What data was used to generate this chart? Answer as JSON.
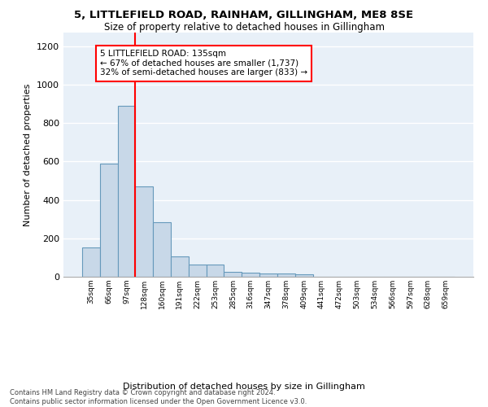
{
  "title1": "5, LITTLEFIELD ROAD, RAINHAM, GILLINGHAM, ME8 8SE",
  "title2": "Size of property relative to detached houses in Gillingham",
  "xlabel": "Distribution of detached houses by size in Gillingham",
  "ylabel": "Number of detached properties",
  "bar_labels": [
    "35sqm",
    "66sqm",
    "97sqm",
    "128sqm",
    "160sqm",
    "191sqm",
    "222sqm",
    "253sqm",
    "285sqm",
    "316sqm",
    "347sqm",
    "378sqm",
    "409sqm",
    "441sqm",
    "472sqm",
    "503sqm",
    "534sqm",
    "566sqm",
    "597sqm",
    "628sqm",
    "659sqm"
  ],
  "bar_values": [
    152,
    590,
    890,
    470,
    285,
    105,
    65,
    65,
    27,
    20,
    17,
    15,
    12,
    0,
    0,
    0,
    0,
    0,
    0,
    0,
    0
  ],
  "bar_color": "#c8d8e8",
  "bar_edge_color": "#6699bb",
  "background_color": "#e8f0f8",
  "grid_color": "#ffffff",
  "vline_x_idx": 3,
  "vline_color": "red",
  "annotation_text": "5 LITTLEFIELD ROAD: 135sqm\n← 67% of detached houses are smaller (1,737)\n32% of semi-detached houses are larger (833) →",
  "annotation_box_color": "white",
  "annotation_box_edge": "red",
  "ylim": [
    0,
    1270
  ],
  "yticks": [
    0,
    200,
    400,
    600,
    800,
    1000,
    1200
  ],
  "footnote": "Contains HM Land Registry data © Crown copyright and database right 2024.\nContains public sector information licensed under the Open Government Licence v3.0."
}
